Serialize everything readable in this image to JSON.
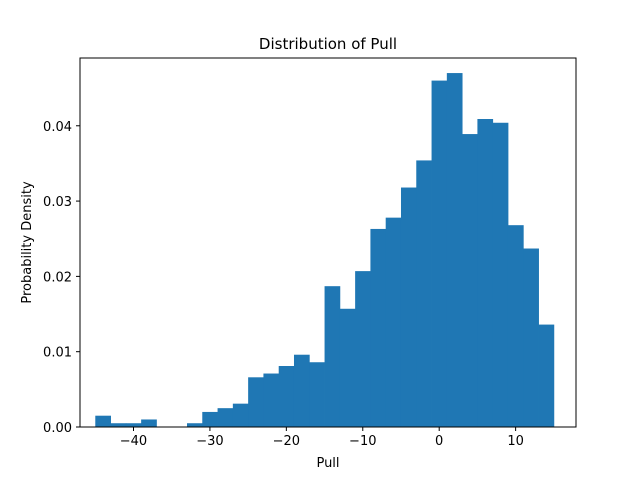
{
  "chart_data": {
    "type": "bar",
    "title": "Distribution of Pull",
    "xlabel": "Pull",
    "ylabel": "Probability Density",
    "xlim": [
      -47.0,
      17.9
    ],
    "ylim": [
      0.0,
      0.049
    ],
    "grid": false,
    "bar_color": "#1f77b4",
    "bin_width": 2.0,
    "bins": [
      {
        "x0": -45,
        "x1": -43,
        "density": 0.0015
      },
      {
        "x0": -43,
        "x1": -41,
        "density": 0.0005
      },
      {
        "x0": -41,
        "x1": -39,
        "density": 0.0005
      },
      {
        "x0": -39,
        "x1": -37,
        "density": 0.001
      },
      {
        "x0": -37,
        "x1": -35,
        "density": 0.0
      },
      {
        "x0": -35,
        "x1": -33,
        "density": 0.0
      },
      {
        "x0": -33,
        "x1": -31,
        "density": 0.0005
      },
      {
        "x0": -31,
        "x1": -29,
        "density": 0.002
      },
      {
        "x0": -29,
        "x1": -27,
        "density": 0.0025
      },
      {
        "x0": -27,
        "x1": -25,
        "density": 0.0031
      },
      {
        "x0": -25,
        "x1": -23,
        "density": 0.0066
      },
      {
        "x0": -23,
        "x1": -21,
        "density": 0.0071
      },
      {
        "x0": -21,
        "x1": -19,
        "density": 0.0081
      },
      {
        "x0": -19,
        "x1": -17,
        "density": 0.0096
      },
      {
        "x0": -17,
        "x1": -15,
        "density": 0.0086
      },
      {
        "x0": -15,
        "x1": -13,
        "density": 0.0187
      },
      {
        "x0": -13,
        "x1": -11,
        "density": 0.0157
      },
      {
        "x0": -11,
        "x1": -9,
        "density": 0.0207
      },
      {
        "x0": -9,
        "x1": -7,
        "density": 0.0263
      },
      {
        "x0": -7,
        "x1": -5,
        "density": 0.0278
      },
      {
        "x0": -5,
        "x1": -3,
        "density": 0.0318
      },
      {
        "x0": -3,
        "x1": -1,
        "density": 0.0354
      },
      {
        "x0": -1,
        "x1": 1,
        "density": 0.046
      },
      {
        "x0": 1,
        "x1": 3,
        "density": 0.047
      },
      {
        "x0": 3,
        "x1": 5,
        "density": 0.0389
      },
      {
        "x0": 5,
        "x1": 7,
        "density": 0.0409
      },
      {
        "x0": 7,
        "x1": 9,
        "density": 0.0404
      },
      {
        "x0": 9,
        "x1": 11,
        "density": 0.0268
      },
      {
        "x0": 11,
        "x1": 13,
        "density": 0.0237
      },
      {
        "x0": 13,
        "x1": 15,
        "density": 0.0136
      }
    ],
    "x_ticks": [
      {
        "value": -40,
        "label": "−40"
      },
      {
        "value": -30,
        "label": "−30"
      },
      {
        "value": -20,
        "label": "−20"
      },
      {
        "value": -10,
        "label": "−10"
      },
      {
        "value": 0,
        "label": "0"
      },
      {
        "value": 10,
        "label": "10"
      }
    ],
    "y_ticks": [
      {
        "value": 0.0,
        "label": "0.00"
      },
      {
        "value": 0.01,
        "label": "0.01"
      },
      {
        "value": 0.02,
        "label": "0.02"
      },
      {
        "value": 0.03,
        "label": "0.03"
      },
      {
        "value": 0.04,
        "label": "0.04"
      }
    ]
  }
}
